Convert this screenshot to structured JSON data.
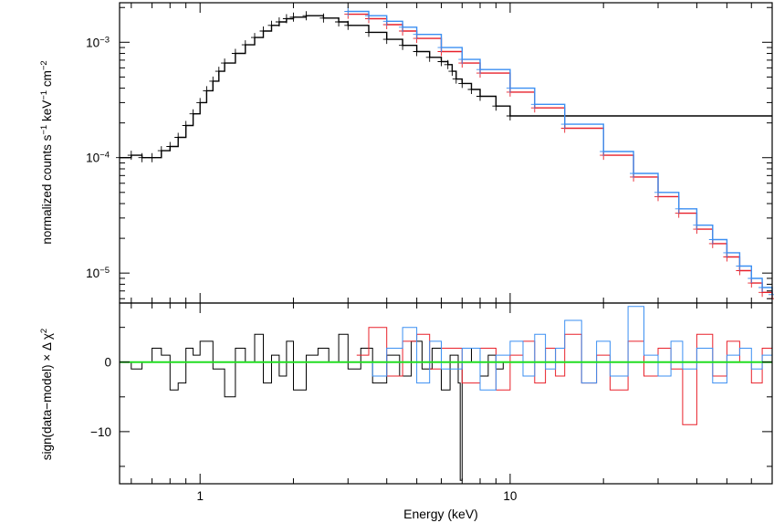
{
  "chart_data": [
    {
      "type": "line",
      "panel": "spectrum",
      "ylabel_main": "normalized counts s",
      "ylabel_sup1": "−1",
      "ylabel_mid": " keV",
      "ylabel_sup2": "−1",
      "ylabel_end": " cm",
      "ylabel_sup3": "−2",
      "xscale": "log",
      "yscale": "log",
      "xlim": [
        0.55,
        70
      ],
      "ylim": [
        5.5e-06,
        0.0022
      ],
      "yticks": [
        {
          "value": 0.001,
          "base": "10",
          "exp": "−3"
        },
        {
          "value": 0.0001,
          "base": "10",
          "exp": "−4"
        },
        {
          "value": 1e-05,
          "base": "10",
          "exp": "−5"
        }
      ],
      "colors": {
        "black": "#000000",
        "red": "#e8202a",
        "blue": "#3b8ff2"
      },
      "series": [
        {
          "color": "black",
          "x": [
            0.55,
            0.6,
            0.65,
            0.7,
            0.75,
            0.8,
            0.85,
            0.9,
            0.95,
            1.0,
            1.05,
            1.1,
            1.15,
            1.2,
            1.3,
            1.4,
            1.5,
            1.6,
            1.7,
            1.8,
            1.9,
            2.0,
            2.2,
            2.5,
            2.8,
            3.0,
            3.5,
            4.0,
            4.5,
            5.0,
            5.5,
            6.0,
            6.3,
            6.5,
            6.7,
            7.0,
            7.5,
            8.0,
            9.0,
            10.0
          ],
          "y": [
            0.0001,
            0.000105,
            0.0001,
            0.0001,
            0.000115,
            0.000125,
            0.00015,
            0.00019,
            0.00024,
            0.0003,
            0.00038,
            0.00046,
            0.00056,
            0.00066,
            0.0008,
            0.00095,
            0.0011,
            0.00125,
            0.0014,
            0.0015,
            0.0016,
            0.00165,
            0.0017,
            0.00162,
            0.0015,
            0.0014,
            0.00122,
            0.00106,
            0.00094,
            0.00083,
            0.00074,
            0.00068,
            0.00064,
            0.00056,
            0.00048,
            0.00044,
            0.00039,
            0.00034,
            0.00028,
            0.00023
          ]
        },
        {
          "color": "red",
          "x": [
            3.0,
            3.5,
            4.0,
            4.5,
            5.0,
            6.0,
            7.0,
            8.0,
            10.0,
            12.0,
            15.0,
            20.0,
            25.0,
            30.0,
            35.0,
            40.0,
            45.0,
            50.0,
            55.0,
            60.0,
            65.0,
            70.0
          ],
          "y": [
            0.00175,
            0.0016,
            0.00142,
            0.00125,
            0.00108,
            0.00083,
            0.00066,
            0.00054,
            0.00037,
            0.00027,
            0.00018,
            0.000105,
            6.8e-05,
            4.6e-05,
            3.3e-05,
            2.4e-05,
            1.8e-05,
            1.38e-05,
            1.05e-05,
            8.2e-06,
            6.8e-06,
            6e-06
          ]
        },
        {
          "color": "blue",
          "x": [
            3.0,
            3.5,
            4.0,
            4.5,
            5.0,
            6.0,
            7.0,
            8.0,
            10.0,
            12.0,
            15.0,
            20.0,
            25.0,
            30.0,
            35.0,
            40.0,
            45.0,
            50.0,
            55.0,
            60.0,
            65.0,
            70.0
          ],
          "y": [
            0.00185,
            0.0017,
            0.00152,
            0.00135,
            0.00117,
            0.0009,
            0.00071,
            0.00058,
            0.0004,
            0.00029,
            0.000195,
            0.000113,
            7.3e-05,
            5e-05,
            3.6e-05,
            2.6e-05,
            1.95e-05,
            1.5e-05,
            1.15e-05,
            9e-06,
            7.5e-06,
            6.5e-06
          ]
        }
      ]
    },
    {
      "type": "line",
      "panel": "residuals",
      "ylabel": "sign(data−model) × Δ χ",
      "ylabel_sup": "2",
      "xlabel": "Energy (keV)",
      "xscale": "log",
      "xlim": [
        0.55,
        70
      ],
      "ylim": [
        -17.5,
        8.5
      ],
      "yticks": [
        {
          "value": 0,
          "label": "0"
        },
        {
          "value": -10,
          "label": "−10"
        }
      ],
      "xticks": [
        {
          "value": 1,
          "label": "1"
        },
        {
          "value": 10,
          "label": "10"
        }
      ],
      "reference_line": {
        "y": 0,
        "color": "#22dd22"
      },
      "series": [
        {
          "color": "black",
          "x": [
            0.55,
            0.6,
            0.65,
            0.7,
            0.75,
            0.8,
            0.85,
            0.9,
            0.95,
            1.0,
            1.1,
            1.2,
            1.3,
            1.4,
            1.5,
            1.6,
            1.7,
            1.8,
            1.9,
            2.0,
            2.2,
            2.4,
            2.6,
            2.8,
            3.0,
            3.3,
            3.6,
            4.0,
            4.4,
            4.8,
            5.2,
            5.6,
            6.0,
            6.4,
            6.8,
            6.9,
            7.0,
            7.5,
            8.0,
            8.5,
            9.0,
            9.5
          ],
          "y": [
            0,
            -1,
            0,
            2,
            1,
            -4,
            -3,
            2,
            1,
            3,
            -1,
            -5,
            2,
            0,
            4,
            -3,
            1,
            -2,
            3,
            -4,
            1,
            2,
            0,
            4,
            -1,
            2,
            -3,
            1,
            -2,
            3,
            -1,
            2,
            -4,
            1,
            -3,
            -17,
            0,
            2,
            -2,
            1,
            -1,
            0
          ]
        },
        {
          "color": "red",
          "x": [
            3.2,
            3.5,
            4.0,
            4.5,
            5.0,
            5.5,
            6.0,
            7.0,
            8.0,
            9.0,
            10.0,
            11.0,
            12.0,
            13.0,
            14.0,
            15.0,
            17.0,
            19.0,
            21.0,
            24.0,
            27.0,
            30.0,
            33.0,
            36.0,
            40.0,
            45.0,
            50.0,
            55.0,
            60.0,
            65.0,
            70.0
          ],
          "y": [
            1,
            5,
            -2,
            3,
            4,
            -1,
            2,
            -3,
            2,
            -4,
            1,
            3,
            -3,
            2,
            -2,
            4,
            -3,
            1,
            -4,
            3,
            -2,
            2,
            -1,
            -9,
            4,
            -2,
            3,
            0,
            -3,
            2,
            1
          ]
        },
        {
          "color": "blue",
          "x": [
            3.2,
            3.6,
            4.0,
            4.5,
            5.0,
            5.5,
            6.0,
            7.0,
            8.0,
            9.0,
            10.0,
            11.0,
            12.0,
            13.0,
            14.0,
            15.0,
            17.0,
            19.0,
            21.0,
            24.0,
            27.0,
            30.0,
            33.0,
            36.0,
            40.0,
            45.0,
            50.0,
            55.0,
            60.0,
            65.0,
            70.0
          ],
          "y": [
            0,
            -2,
            2,
            5,
            -3,
            3,
            -1,
            2,
            -4,
            1,
            3,
            -2,
            4,
            -1,
            2,
            6,
            -3,
            3,
            -2,
            8,
            1,
            -2,
            3,
            -1,
            2,
            -3,
            1,
            2,
            -1,
            1,
            0
          ]
        }
      ]
    }
  ]
}
